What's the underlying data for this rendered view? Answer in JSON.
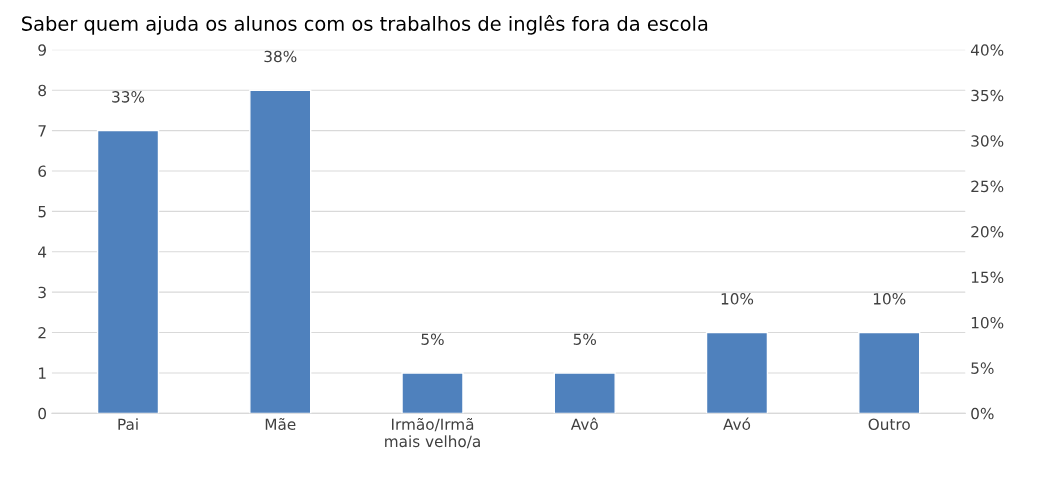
{
  "chart_data": {
    "type": "bar",
    "title": "Saber quem ajuda os alunos com os trabalhos de inglês fora da escola",
    "categories": [
      "Pai",
      "Mãe",
      "Irmão/Irmã\nmais velho/a",
      "Avô",
      "Avó",
      "Outro"
    ],
    "series": [
      {
        "color": "#4f81bd",
        "values": [
          7,
          8,
          1,
          1,
          2,
          2
        ]
      }
    ],
    "annotations": [
      {
        "text": "33%",
        "x": "Pai",
        "y": 7
      },
      {
        "text": "38%",
        "x": "Mãe",
        "y": 8
      },
      {
        "text": "5%",
        "x": "Irmão/Irmã\nmais velho/a",
        "y": 1
      },
      {
        "text": "5%",
        "x": "Avô",
        "y": 1
      },
      {
        "text": "10%",
        "x": "Avó",
        "y": 2
      },
      {
        "text": "10%",
        "x": "Outro",
        "y": 2
      }
    ],
    "ylim": [
      0,
      9
    ],
    "yticks": [
      0,
      1,
      2,
      3,
      4,
      5,
      6,
      7,
      8,
      9
    ],
    "y2lim": [
      0,
      40
    ],
    "y2ticks": [
      {
        "value": 0,
        "label": "0%"
      },
      {
        "value": 5,
        "label": "5%"
      },
      {
        "value": 10,
        "label": "10%"
      },
      {
        "value": 15,
        "label": "15%"
      },
      {
        "value": 20,
        "label": "20%"
      },
      {
        "value": 25,
        "label": "25%"
      },
      {
        "value": 30,
        "label": "30%"
      },
      {
        "value": 35,
        "label": "35%"
      },
      {
        "value": 40,
        "label": "40%"
      }
    ],
    "grid": "y",
    "legend": false
  }
}
